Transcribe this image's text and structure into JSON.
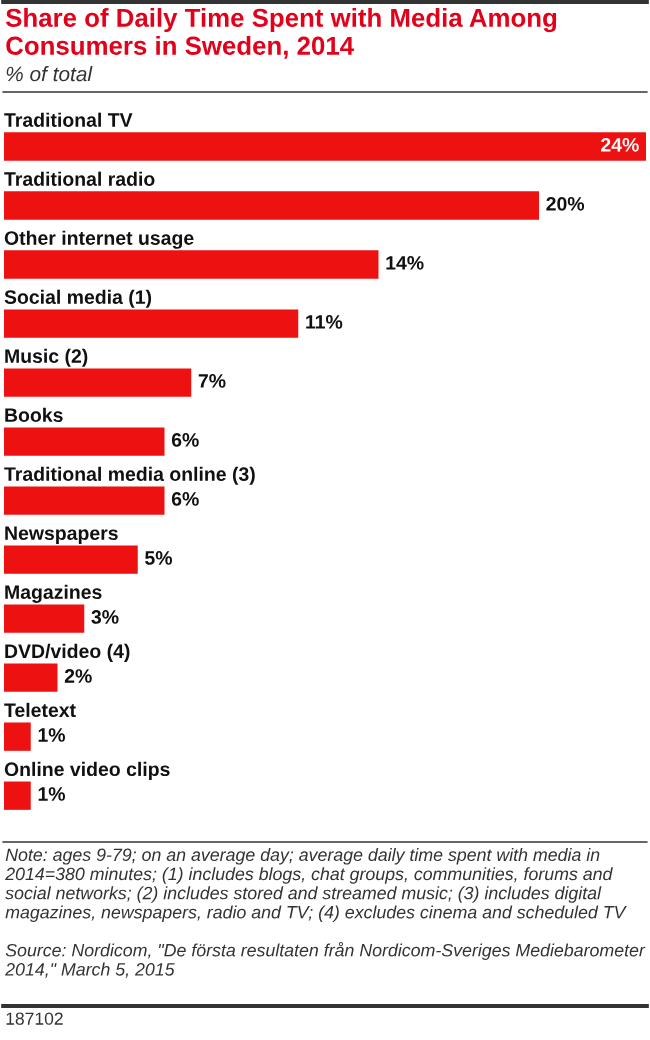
{
  "chart_data": {
    "type": "bar",
    "orientation": "horizontal",
    "title": "Share of Daily Time Spent with Media Among Consumers in Sweden, 2014",
    "subtitle": "% of total",
    "categories": [
      "Traditional TV",
      "Traditional radio",
      "Other internet usage",
      "Social media (1)",
      "Music (2)",
      "Books",
      "Traditional media online (3)",
      "Newspapers",
      "Magazines",
      "DVD/video (4)",
      "Teletext",
      "Online video clips"
    ],
    "values": [
      24,
      20,
      14,
      11,
      7,
      6,
      6,
      5,
      3,
      2,
      1,
      1
    ],
    "value_labels": [
      "24%",
      "20%",
      "14%",
      "11%",
      "7%",
      "6%",
      "6%",
      "5%",
      "3%",
      "2%",
      "1%",
      "1%"
    ],
    "color": "#ee1111",
    "annotations": [
      "Note: ages 9-79; on an average day; average daily time spent with media in 2014=380 minutes; (1) includes blogs, chat groups, communities, forums and social networks; (2) includes stored and streamed music; (3) includes digital magazines, newspapers, radio and TV; (4) excludes cinema and scheduled TV",
      "Source: Nordicom, \"De första resultaten från Nordicom-Sveriges Mediebarometer 2014,\" March 5, 2015",
      "187102"
    ]
  }
}
